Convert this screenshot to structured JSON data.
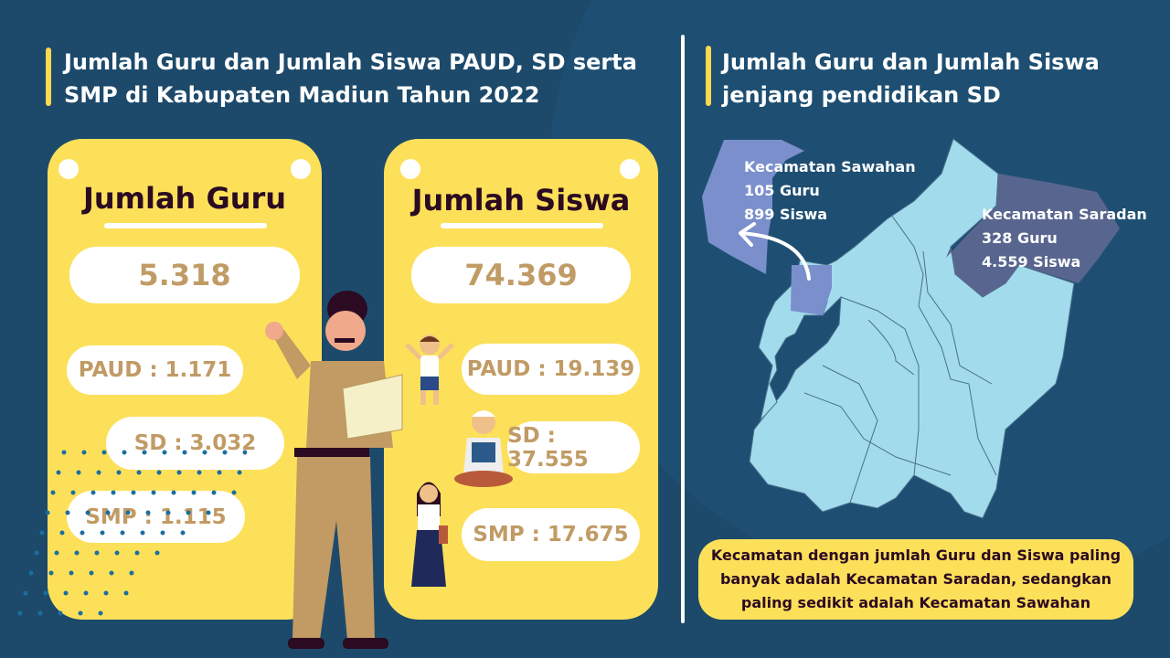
{
  "left": {
    "title_line1": "Jumlah Guru dan Jumlah Siswa PAUD, SD serta",
    "title_line2": "SMP di Kabupaten Madiun Tahun 2022",
    "guru_card": {
      "title": "Jumlah Guru",
      "total": "5.318",
      "paud": "PAUD : 1.171",
      "sd": "SD : 3.032",
      "smp": "SMP : 1.115"
    },
    "siswa_card": {
      "title": "Jumlah Siswa",
      "total": "74.369",
      "paud": "PAUD : 19.139",
      "sd": "SD : 37.555",
      "smp": "SMP : 17.675"
    }
  },
  "right": {
    "title_line1": "Jumlah Guru dan Jumlah Siswa",
    "title_line2": "jenjang pendidikan SD",
    "sawahan": {
      "name": "Kecamatan Sawahan",
      "guru": "105 Guru",
      "siswa": "899 Siswa"
    },
    "saradan": {
      "name": "Kecamatan Saradan",
      "guru": "328 Guru",
      "siswa": "4.559 Siswa"
    },
    "note_line1": "Kecamatan dengan jumlah Guru dan Siswa paling",
    "note_line2": "banyak adalah Kecamatan Saradan, sedangkan",
    "note_line3": "paling sedikit adalah Kecamatan Sawahan"
  },
  "colors": {
    "background": "#1d4a6b",
    "card": "#fde05a",
    "number": "#c19b65",
    "map": "#a2dbec",
    "sawahan": "#7a8fcc",
    "saradan": "#58668f"
  }
}
